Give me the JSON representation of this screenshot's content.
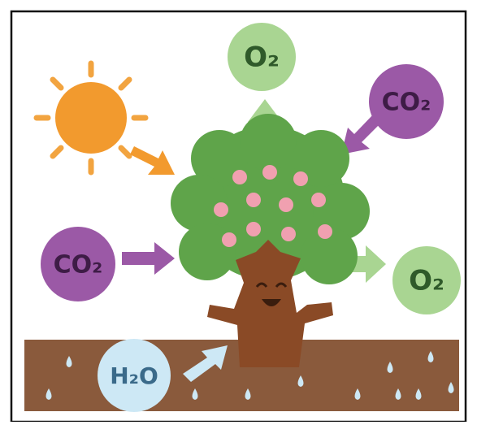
{
  "bubbles": [
    {
      "label": "O₂"
    },
    {
      "label": "CO₂"
    },
    {
      "label": "CO₂"
    },
    {
      "label": "O₂"
    },
    {
      "label": "H₂O"
    }
  ]
}
